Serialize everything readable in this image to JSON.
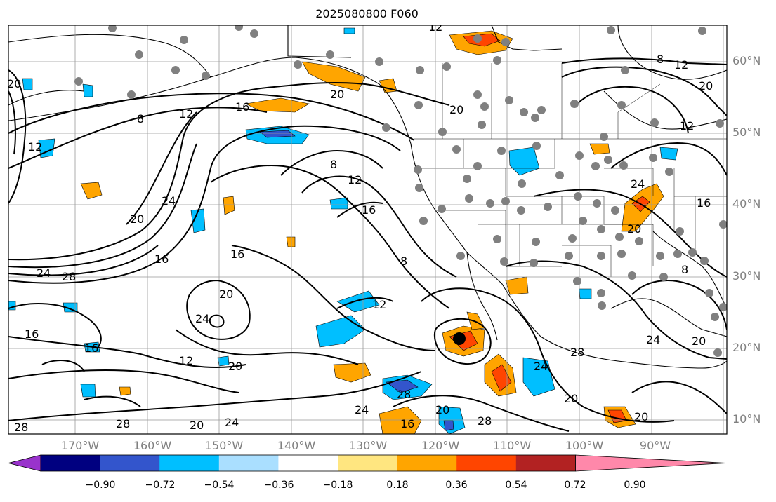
{
  "title": "2025080800 F060",
  "lat_labels": [
    "60°N",
    "50°N",
    "40°N",
    "30°N",
    "20°N",
    "10°N"
  ],
  "lon_labels": [
    "170°W",
    "160°W",
    "150°W",
    "140°W",
    "130°W",
    "120°W",
    "110°W",
    "100°W",
    "90°W"
  ],
  "contour_labels": [
    "8",
    "12",
    "16",
    "20",
    "24",
    "28"
  ],
  "colorbar": {
    "colors": [
      "#9933cc",
      "#000080",
      "#3355cc",
      "#00bfff",
      "#aadfff",
      "#ffffff",
      "#ffe680",
      "#ffa500",
      "#ff4500",
      "#b22222",
      "#ff88aa"
    ],
    "labels": [
      "−0.90",
      "−0.72",
      "−0.54",
      "−0.36",
      "−0.18",
      "0.18",
      "0.36",
      "0.54",
      "0.72",
      "0.90"
    ]
  },
  "colors": {
    "station_dot": "#808080",
    "grid": "#999999",
    "label_gray": "#808080"
  }
}
